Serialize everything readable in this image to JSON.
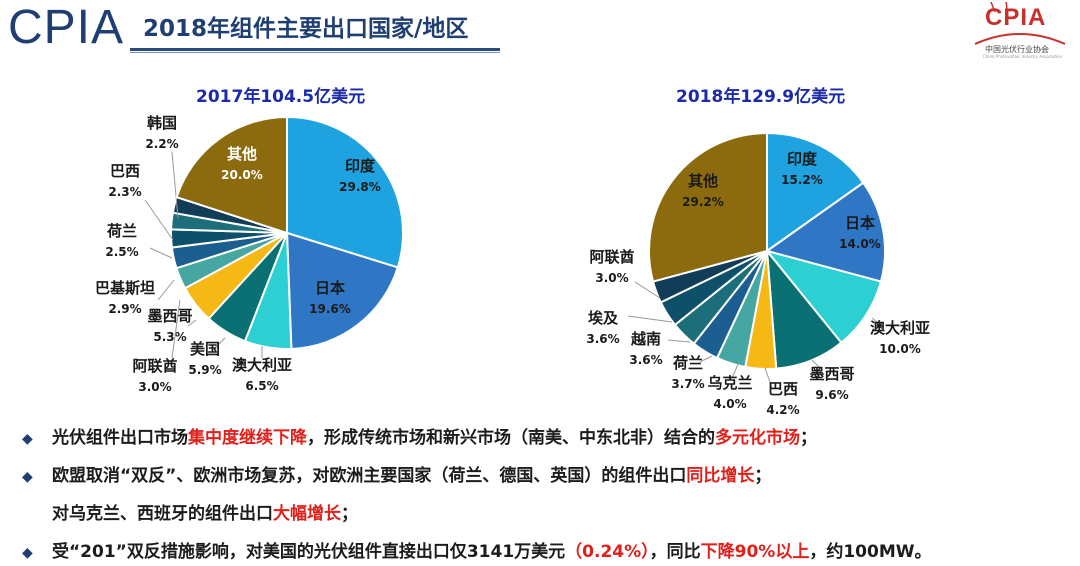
{
  "header": {
    "logo_text": "CPIA",
    "title": "2018年组件主要出口国家/地区",
    "brand_text": "CPIA",
    "brand_subtitle": "中国光伏行业协会",
    "brand_tagline": "China Photovoltaic Industry Association"
  },
  "colors": {
    "印度": "#1ea3e0",
    "日本": "#2f77c4",
    "澳大利亚": "#2ccfd2",
    "美国": "#0a6f73",
    "墨西哥": "#0a6f73",
    "阿联酋": "#1b4a6e",
    "巴基斯坦": "#3d9995",
    "荷兰": "#1e5585",
    "巴西": "#f5b815",
    "韩国": "#0f3e5c",
    "其他": "#8c6b0f",
    "乌克兰": "#3d9995",
    "越南": "#1e7a82",
    "埃及": "#13506f"
  },
  "chart_data": [
    {
      "type": "pie",
      "title": "2017年104.5亿美元",
      "slices": [
        {
          "label": "印度",
          "value": 29.8,
          "display": "29.8%",
          "color": "#1ea3e0"
        },
        {
          "label": "日本",
          "value": 19.6,
          "display": "19.6%",
          "color": "#2f77c4"
        },
        {
          "label": "澳大利亚",
          "value": 6.5,
          "display": "6.5%",
          "color": "#2ccfd2"
        },
        {
          "label": "美国",
          "value": 5.9,
          "display": "5.9%",
          "color": "#0a7074"
        },
        {
          "label": "墨西哥",
          "value": 5.3,
          "display": "5.3%",
          "color": "#f5b815"
        },
        {
          "label": "阿联酋",
          "value": 3.0,
          "display": "3.0%",
          "color": "#46a6a1"
        },
        {
          "label": "巴基斯坦",
          "value": 2.9,
          "display": "2.9%",
          "color": "#1b5e8f"
        },
        {
          "label": "荷兰",
          "value": 2.5,
          "display": "2.5%",
          "color": "#0e4f6a"
        },
        {
          "label": "巴西",
          "value": 2.3,
          "display": "2.3%",
          "color": "#1c6f7a"
        },
        {
          "label": "韩国",
          "value": 2.2,
          "display": "2.2%",
          "color": "#123d58"
        },
        {
          "label": "其他",
          "value": 20.0,
          "display": "20.0%",
          "color": "#8c6b0f"
        }
      ]
    },
    {
      "type": "pie",
      "title": "2018年129.9亿美元",
      "slices": [
        {
          "label": "印度",
          "value": 15.2,
          "display": "15.2%",
          "color": "#1ea3e0"
        },
        {
          "label": "日本",
          "value": 14.0,
          "display": "14.0%",
          "color": "#2f77c4"
        },
        {
          "label": "澳大利亚",
          "value": 10.0,
          "display": "10.0%",
          "color": "#2ccfd2"
        },
        {
          "label": "墨西哥",
          "value": 9.6,
          "display": "9.6%",
          "color": "#0a7074"
        },
        {
          "label": "巴西",
          "value": 4.2,
          "display": "4.2%",
          "color": "#f5b815"
        },
        {
          "label": "乌克兰",
          "value": 4.0,
          "display": "4.0%",
          "color": "#46a6a1"
        },
        {
          "label": "荷兰",
          "value": 3.7,
          "display": "3.7%",
          "color": "#1b5e8f"
        },
        {
          "label": "越南",
          "value": 3.6,
          "display": "3.6%",
          "color": "#1c6f7a"
        },
        {
          "label": "埃及",
          "value": 3.6,
          "display": "3.6%",
          "color": "#0e4f6a"
        },
        {
          "label": "阿联酋",
          "value": 3.0,
          "display": "3.0%",
          "color": "#123d58"
        },
        {
          "label": "其他",
          "value": 29.2,
          "display": "29.2%",
          "color": "#8c6b0f"
        }
      ]
    }
  ],
  "bullets": [
    {
      "marker": "◆",
      "parts": [
        {
          "text": "光伏组件出口市场",
          "hl": false
        },
        {
          "text": "集中度继续下降",
          "hl": true
        },
        {
          "text": "，形成传统市场和新兴市场（南美、中东北非）结合的",
          "hl": false
        },
        {
          "text": "多元化市场",
          "hl": true
        },
        {
          "text": "；",
          "hl": false
        }
      ]
    },
    {
      "marker": "◆",
      "parts": [
        {
          "text": "欧盟取消“双反”、欧洲市场复苏，对欧洲主要国家（荷兰、德国、英国）的组件出口",
          "hl": false
        },
        {
          "text": "同比增长",
          "hl": true
        },
        {
          "text": "；",
          "hl": false
        }
      ]
    },
    {
      "marker": "",
      "parts": [
        {
          "text": "对乌克兰、西班牙的组件出口",
          "hl": false
        },
        {
          "text": "大幅增长",
          "hl": true
        },
        {
          "text": "；",
          "hl": false
        }
      ]
    },
    {
      "marker": "◆",
      "parts": [
        {
          "text": "受“201”双反措施影响，对美国的光伏组件直接出口仅3141万美元",
          "hl": false
        },
        {
          "text": "（0.24%）",
          "hl": true
        },
        {
          "text": "，同比",
          "hl": false
        },
        {
          "text": "下降90%以上",
          "hl": true
        },
        {
          "text": "，约100MW。",
          "hl": false
        }
      ]
    }
  ]
}
